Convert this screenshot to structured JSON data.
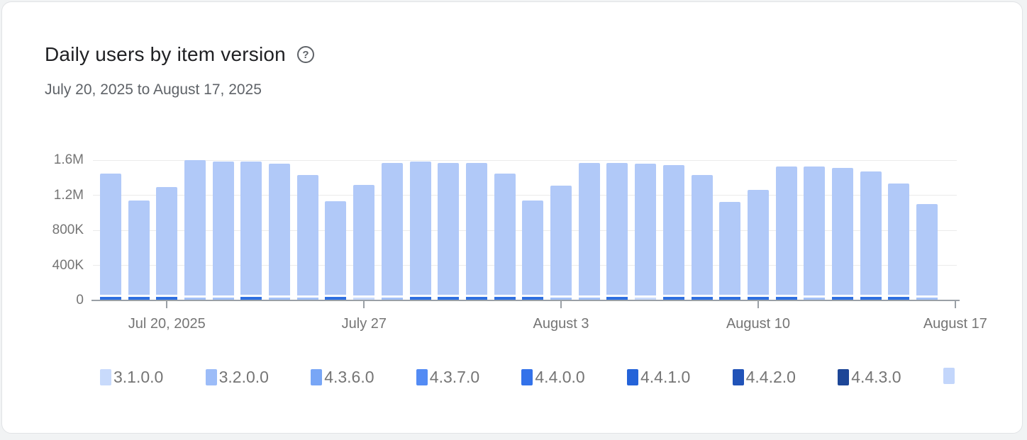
{
  "page": {
    "background": "#f1f3f4",
    "card_background": "#ffffff"
  },
  "header": {
    "title": "Daily users by item version",
    "help_icon_glyph": "?",
    "date_range": "July 20, 2025 to August 17, 2025"
  },
  "chart_data": {
    "type": "bar",
    "stacked": true,
    "title": "Daily users by item version",
    "subtitle": "July 20, 2025 to August 17, 2025",
    "grid": true,
    "legend_position": "bottom",
    "ylabel": "",
    "xlabel": "",
    "y_axis": {
      "tick_labels": [
        "0",
        "400K",
        "800K",
        "1.2M",
        "1.6M"
      ],
      "tick_values": [
        0,
        400000,
        800000,
        1200000,
        1600000
      ],
      "max": 1600000
    },
    "x_axis": {
      "tick_labels": [
        "Jul 20, 2025",
        "July 27",
        "August 3",
        "August 10",
        "August 17"
      ],
      "tick_slots": [
        3,
        10,
        17,
        24,
        31
      ],
      "total_slots": 31
    },
    "bars": [
      {
        "total": 1450000,
        "accent": "strong"
      },
      {
        "total": 1140000,
        "accent": "strong"
      },
      {
        "total": 1290000,
        "accent": "strong"
      },
      {
        "total": 1600000,
        "accent": "light"
      },
      {
        "total": 1580000,
        "accent": "light"
      },
      {
        "total": 1580000,
        "accent": "strong"
      },
      {
        "total": 1560000,
        "accent": "light"
      },
      {
        "total": 1430000,
        "accent": "light"
      },
      {
        "total": 1130000,
        "accent": "strong"
      },
      {
        "total": 1320000,
        "accent": "pale"
      },
      {
        "total": 1570000,
        "accent": "light"
      },
      {
        "total": 1580000,
        "accent": "strong"
      },
      {
        "total": 1570000,
        "accent": "strong"
      },
      {
        "total": 1570000,
        "accent": "strong"
      },
      {
        "total": 1450000,
        "accent": "strong"
      },
      {
        "total": 1140000,
        "accent": "strong"
      },
      {
        "total": 1310000,
        "accent": "light"
      },
      {
        "total": 1570000,
        "accent": "light"
      },
      {
        "total": 1570000,
        "accent": "strong"
      },
      {
        "total": 1560000,
        "accent": "pale"
      },
      {
        "total": 1540000,
        "accent": "strong"
      },
      {
        "total": 1430000,
        "accent": "strong"
      },
      {
        "total": 1120000,
        "accent": "strong"
      },
      {
        "total": 1260000,
        "accent": "strong"
      },
      {
        "total": 1530000,
        "accent": "strong"
      },
      {
        "total": 1530000,
        "accent": "light"
      },
      {
        "total": 1510000,
        "accent": "strong"
      },
      {
        "total": 1470000,
        "accent": "strong"
      },
      {
        "total": 1330000,
        "accent": "strong"
      },
      {
        "total": 1100000,
        "accent": "light"
      }
    ],
    "colors": {
      "bar_main": "#b1c9f8",
      "accent_strong": "#2e6fe0",
      "accent_light": "#a3c1f8",
      "accent_pale": "#c9dafb",
      "axis": "#9aa0a6",
      "gridline": "#ebebeb",
      "label_text": "#757575"
    }
  },
  "legend": {
    "items": [
      {
        "label": "3.1.0.0",
        "color": "#c8dafb"
      },
      {
        "label": "3.2.0.0",
        "color": "#9cbcf8"
      },
      {
        "label": "4.3.6.0",
        "color": "#78a6f6"
      },
      {
        "label": "4.3.7.0",
        "color": "#538bf4"
      },
      {
        "label": "4.4.0.0",
        "color": "#3372ea"
      },
      {
        "label": "4.4.1.0",
        "color": "#2463d9"
      },
      {
        "label": "4.4.2.0",
        "color": "#2153b8"
      },
      {
        "label": "4.4.3.0",
        "color": "#1d4697"
      },
      {
        "label": "",
        "color": "#c3d6fb",
        "truncated": true
      }
    ]
  }
}
